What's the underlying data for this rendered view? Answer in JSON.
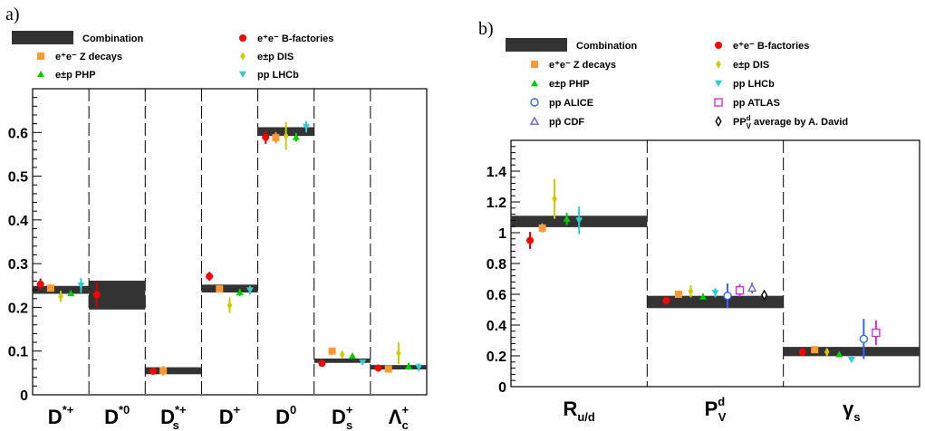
{
  "panels": {
    "a": {
      "label": "a)"
    },
    "b": {
      "label": "b)"
    }
  },
  "chart_data": [
    {
      "id": "a",
      "type": "scatter",
      "title": "",
      "xlabel": "",
      "ylabel": "",
      "ylim": [
        0,
        0.7
      ],
      "yticks": [
        0,
        0.1,
        0.2,
        0.3,
        0.4,
        0.5,
        0.6
      ],
      "ytick_labels": [
        "0",
        "0.1",
        "0.2",
        "0.3",
        "0.4",
        "0.5",
        "0.6"
      ],
      "grid": false,
      "legend": "top",
      "categories": [
        {
          "base": "D",
          "sup": "*+",
          "sub": ""
        },
        {
          "base": "D",
          "sup": "*0",
          "sub": ""
        },
        {
          "base": "D",
          "sup": "*+",
          "sub": "s"
        },
        {
          "base": "D",
          "sup": "+",
          "sub": ""
        },
        {
          "base": "D",
          "sup": "0",
          "sub": ""
        },
        {
          "base": "D",
          "sup": "+",
          "sub": "s"
        },
        {
          "base": "Λ",
          "sup": "+",
          "sub": "c"
        }
      ],
      "combination": [
        {
          "center": 0.24,
          "half": 0.009
        },
        {
          "center": 0.228,
          "half": 0.033
        },
        {
          "center": 0.055,
          "half": 0.008
        },
        {
          "center": 0.243,
          "half": 0.009
        },
        {
          "center": 0.602,
          "half": 0.01
        },
        {
          "center": 0.078,
          "half": 0.005
        },
        {
          "center": 0.063,
          "half": 0.005
        }
      ],
      "series": [
        {
          "name": "e⁺e⁻ B-factories",
          "marker": "circle",
          "color": "#ff0000",
          "errcolor": "#cc0000",
          "points": [
            [
              0,
              0.253,
              0.013
            ],
            [
              1,
              0.229,
              0.03
            ],
            [
              2,
              0.054,
              0.005
            ],
            [
              3,
              0.271,
              0.01
            ],
            [
              4,
              0.589,
              0.015
            ],
            [
              5,
              0.072,
              0.005
            ],
            [
              6,
              0.061,
              0.005
            ]
          ]
        },
        {
          "name": "e⁺e⁻ Z decays",
          "marker": "square",
          "color": "#ff9933",
          "errcolor": "#ff9933",
          "points": [
            [
              0,
              0.244,
              0.006
            ],
            [
              2,
              0.055,
              0.011
            ],
            [
              3,
              0.242,
              0.008
            ],
            [
              4,
              0.588,
              0.013
            ],
            [
              5,
              0.1,
              0.006
            ],
            [
              6,
              0.059,
              0.008
            ]
          ]
        },
        {
          "name": "e±p DIS",
          "marker": "diamond",
          "color": "#cccc00",
          "errcolor": "#cccc00",
          "points": [
            [
              0,
              0.225,
              0.013
            ],
            [
              3,
              0.205,
              0.018
            ],
            [
              4,
              0.592,
              0.032
            ],
            [
              5,
              0.092,
              0.008
            ],
            [
              6,
              0.095,
              0.025
            ]
          ]
        },
        {
          "name": "e±p PHP",
          "marker": "triangle-up",
          "color": "#00cc00",
          "errcolor": "#00cc00",
          "points": [
            [
              0,
              0.232,
              0.004
            ],
            [
              3,
              0.234,
              0.008
            ],
            [
              4,
              0.589,
              0.01
            ],
            [
              5,
              0.089,
              0.004
            ],
            [
              6,
              0.065,
              0.008
            ]
          ]
        },
        {
          "name": "pp LHCb",
          "marker": "triangle-down",
          "color": "#33cccc",
          "errcolor": "#33cccc",
          "points": [
            [
              0,
              0.25,
              0.017
            ],
            [
              3,
              0.239,
              0.01
            ],
            [
              4,
              0.613,
              0.013
            ],
            [
              5,
              0.074,
              0.004
            ],
            [
              6,
              0.063,
              0.009
            ]
          ]
        }
      ]
    },
    {
      "id": "b",
      "type": "scatter",
      "title": "",
      "xlabel": "",
      "ylabel": "",
      "ylim": [
        0,
        1.6
      ],
      "yticks": [
        0,
        0.2,
        0.4,
        0.6,
        0.8,
        1.0,
        1.2,
        1.4
      ],
      "ytick_labels": [
        "0",
        "0.2",
        "0.4",
        "0.6",
        "0.8",
        "1",
        "1.2",
        "1.4"
      ],
      "grid": false,
      "legend": "top",
      "categories": [
        {
          "base": "R",
          "sup": "",
          "sub": "u/d"
        },
        {
          "base": "P",
          "sup": "d",
          "sub": "V"
        },
        {
          "base": "γ",
          "sup": "",
          "sub": "s"
        }
      ],
      "combination": [
        {
          "center": 1.073,
          "half": 0.037
        },
        {
          "center": 0.55,
          "half": 0.04
        },
        {
          "center": 0.228,
          "half": 0.03
        }
      ],
      "series": [
        {
          "name": "e⁺e⁻ B-factories",
          "marker": "circle",
          "color": "#ff0000",
          "errcolor": "#cc0000",
          "points": [
            [
              0,
              0.95,
              0.055
            ],
            [
              1,
              0.56,
              0.03
            ],
            [
              2,
              0.225,
              0.025
            ]
          ]
        },
        {
          "name": "e⁺e⁻ Z decays",
          "marker": "square",
          "color": "#ff9933",
          "errcolor": "#ff9933",
          "points": [
            [
              0,
              1.03,
              0.03
            ],
            [
              1,
              0.6,
              0.015
            ],
            [
              2,
              0.24,
              0.015
            ]
          ]
        },
        {
          "name": "e±p DIS",
          "marker": "diamond",
          "color": "#cccc00",
          "errcolor": "#cccc00",
          "points": [
            [
              0,
              1.22,
              0.13
            ],
            [
              1,
              0.62,
              0.04
            ],
            [
              2,
              0.225,
              0.025
            ]
          ]
        },
        {
          "name": "e±p PHP",
          "marker": "triangle-up",
          "color": "#00cc00",
          "errcolor": "#00cc00",
          "points": [
            [
              0,
              1.09,
              0.04
            ],
            [
              1,
              0.585,
              0.02
            ],
            [
              2,
              0.21,
              0.01
            ]
          ]
        },
        {
          "name": "pp LHCb",
          "marker": "triangle-down",
          "color": "#33cccc",
          "errcolor": "#33cccc",
          "points": [
            [
              0,
              1.08,
              0.09
            ],
            [
              1,
              0.61,
              0.03
            ],
            [
              2,
              0.175,
              0.01
            ]
          ]
        },
        {
          "name": "pp ALICE",
          "marker": "open-circle",
          "color": "#3366ff",
          "errcolor": "#3366ff",
          "points": [
            [
              1,
              0.59,
              0.08
            ],
            [
              2,
              0.31,
              0.13
            ]
          ]
        },
        {
          "name": "pp ATLAS",
          "marker": "open-square",
          "color": "#cc33cc",
          "errcolor": "#cc33cc",
          "points": [
            [
              1,
              0.625,
              0.04
            ],
            [
              2,
              0.35,
              0.08
            ]
          ]
        },
        {
          "name": "pp̄ CDF",
          "marker": "open-triangle",
          "color": "#6666cc",
          "errcolor": "#6666cc",
          "points": [
            [
              1,
              0.64,
              0.035
            ]
          ]
        },
        {
          "name": "P_V^d average by A. David",
          "marker": "open-diamond",
          "color": "#000000",
          "errcolor": "#000000",
          "points": [
            [
              1,
              0.595,
              0.01
            ]
          ]
        }
      ]
    }
  ],
  "legends": {
    "a": [
      {
        "text": "Combination",
        "marker": "band",
        "color": "#333333"
      },
      {
        "text": "e⁺e⁻ B-factories",
        "marker": "circle",
        "color": "#ff0000"
      },
      {
        "text": "e⁺e⁻ Z decays",
        "marker": "square",
        "color": "#ff9933"
      },
      {
        "text": "e±p DIS",
        "marker": "diamond",
        "color": "#cccc00"
      },
      {
        "text": "e±p PHP",
        "marker": "triangle-up",
        "color": "#00cc00"
      },
      {
        "text": "pp LHCb",
        "marker": "triangle-down",
        "color": "#33cccc"
      }
    ],
    "b": [
      {
        "text": "Combination",
        "marker": "band",
        "color": "#333333"
      },
      {
        "text": "e⁺e⁻ B-factories",
        "marker": "circle",
        "color": "#ff0000"
      },
      {
        "text": "e⁺e⁻ Z decays",
        "marker": "square",
        "color": "#ff9933"
      },
      {
        "text": "e±p DIS",
        "marker": "diamond",
        "color": "#cccc00"
      },
      {
        "text": "e±p PHP",
        "marker": "triangle-up",
        "color": "#00cc00"
      },
      {
        "text": "pp LHCb",
        "marker": "triangle-down",
        "color": "#33cccc"
      },
      {
        "text": "pp ALICE",
        "marker": "open-circle",
        "color": "#3366ff"
      },
      {
        "text": "pp ATLAS",
        "marker": "open-square",
        "color": "#cc33cc"
      },
      {
        "text": "pp̄ CDF",
        "marker": "open-triangle",
        "color": "#6666cc"
      },
      {
        "text": "P_V^d average by A. David",
        "marker": "open-diamond",
        "color": "#000000"
      }
    ]
  }
}
